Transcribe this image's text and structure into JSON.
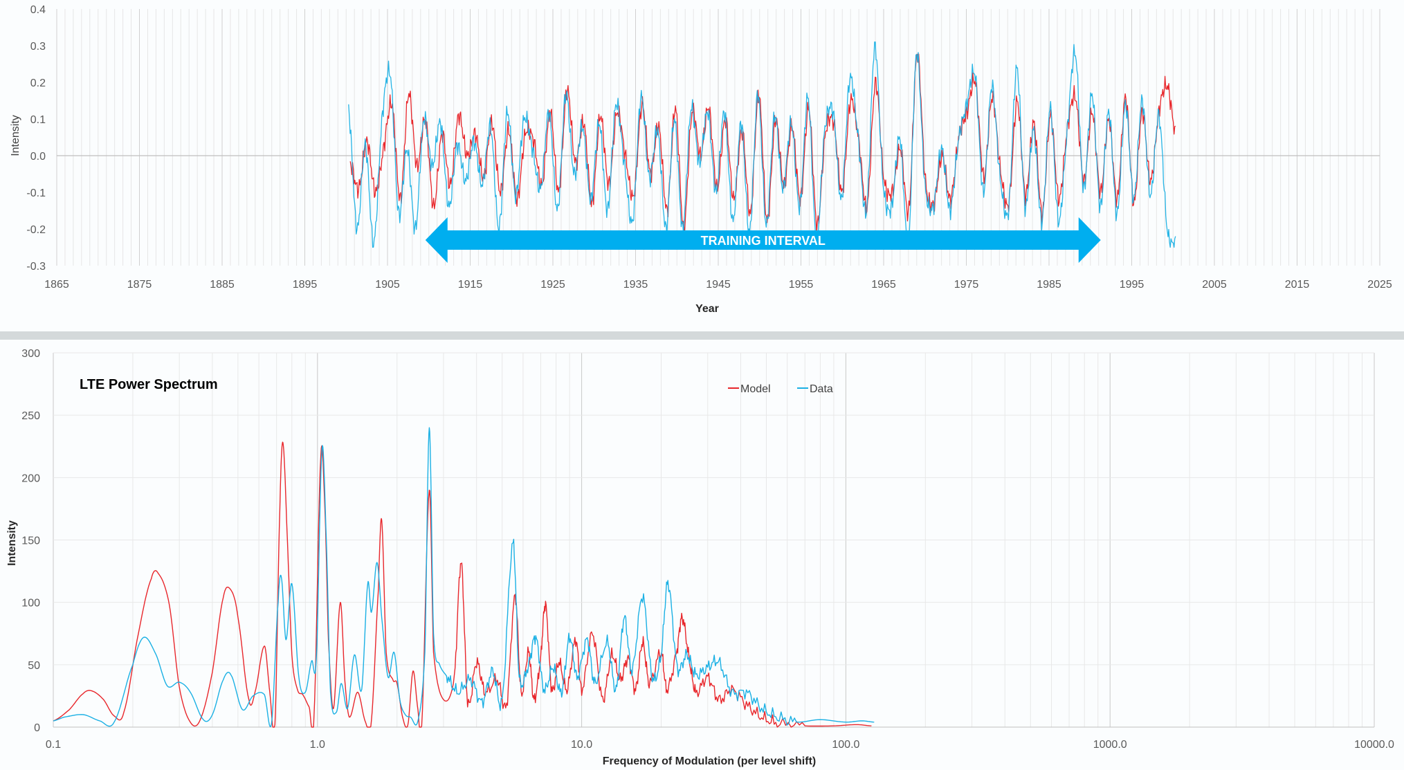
{
  "colors": {
    "model": "#e8262b",
    "data": "#1ab0e4",
    "banner": "#00aeef",
    "grid": "#d9d9d9",
    "zero_line": "#bfbfbf",
    "divider": "#d4d9da"
  },
  "chart_data": [
    {
      "type": "line",
      "title": "",
      "xlabel": "Year",
      "ylabel": "Intensity",
      "xlim": [
        1865,
        2025
      ],
      "ylim": [
        -0.3,
        0.4
      ],
      "x_ticks": [
        "1865",
        "1875",
        "1885",
        "1895",
        "1905",
        "1915",
        "1925",
        "1935",
        "1945",
        "1955",
        "1965",
        "1975",
        "1985",
        "1995",
        "2005",
        "2015",
        "2025"
      ],
      "y_ticks": [
        "0.4",
        "0.3",
        "0.2",
        "0.1",
        "0.0",
        "-0.1",
        "-0.2",
        "-0.3"
      ],
      "grid": "vertical minor gridlines every year",
      "annotation": {
        "text": "TRAINING INTERVAL",
        "from_year": 1910,
        "to_year": 1990
      },
      "series": [
        {
          "color": "#e8262b",
          "x_range": [
            1900.5,
            2000.3
          ],
          "values": [
            -0.02,
            -0.09,
            0.04,
            -0.1,
            0.02,
            0.14,
            -0.12,
            0.17,
            -0.03,
            0.1,
            -0.14,
            0.06,
            -0.08,
            0.11,
            0.0,
            0.06,
            -0.06,
            0.09,
            -0.1,
            0.07,
            -0.12,
            0.06,
            0.04,
            -0.08,
            0.12,
            -0.1,
            0.18,
            -0.02,
            0.09,
            -0.13,
            0.11,
            -0.08,
            0.12,
            0.0,
            -0.11,
            0.14,
            -0.05,
            0.08,
            -0.15,
            0.13,
            -0.2,
            0.12,
            0.0,
            0.13,
            -0.09,
            0.1,
            -0.12,
            0.07,
            -0.16,
            0.17,
            -0.18,
            0.1,
            -0.08,
            0.08,
            -0.12,
            0.13,
            -0.19,
            0.06,
            0.09,
            -0.1,
            0.15,
            0.04,
            -0.14,
            0.2,
            -0.06,
            -0.1,
            0.02,
            -0.15,
            0.28,
            -0.07,
            -0.13,
            0.0,
            -0.12,
            0.05,
            0.12,
            0.2,
            -0.06,
            0.16,
            -0.04,
            -0.13,
            0.15,
            -0.11,
            0.09,
            -0.16,
            0.11,
            -0.12,
            0.07,
            0.16,
            -0.07,
            0.12,
            -0.1,
            0.1,
            -0.12,
            0.16,
            -0.13,
            0.12,
            -0.07,
            0.12,
            0.19,
            0.06
          ]
        },
        {
          "color": "#1ab0e4",
          "x_range": [
            1900.3,
            2000.3
          ],
          "values": [
            0.13,
            -0.2,
            0.03,
            -0.24,
            0.1,
            0.22,
            -0.16,
            0.02,
            -0.2,
            0.1,
            -0.03,
            0.09,
            -0.14,
            0.03,
            -0.07,
            0.04,
            -0.08,
            0.08,
            -0.2,
            0.12,
            -0.11,
            0.1,
            0.02,
            -0.09,
            0.12,
            -0.15,
            0.17,
            -0.05,
            0.08,
            -0.12,
            0.09,
            -0.15,
            0.14,
            -0.02,
            -0.18,
            0.16,
            -0.06,
            0.07,
            -0.2,
            0.1,
            -0.2,
            0.13,
            -0.02,
            0.12,
            -0.1,
            0.12,
            -0.18,
            0.09,
            -0.21,
            0.17,
            -0.19,
            0.11,
            -0.09,
            0.09,
            -0.14,
            0.16,
            -0.23,
            0.07,
            0.12,
            -0.12,
            0.21,
            0.05,
            -0.15,
            0.3,
            -0.08,
            -0.14,
            0.05,
            -0.24,
            0.28,
            -0.08,
            -0.14,
            0.02,
            -0.15,
            0.04,
            0.14,
            0.22,
            -0.1,
            0.19,
            -0.06,
            -0.15,
            0.24,
            -0.14,
            0.07,
            -0.18,
            0.13,
            -0.18,
            0.06,
            0.28,
            -0.09,
            0.17,
            -0.14,
            0.12,
            -0.16,
            0.14,
            -0.12,
            0.15,
            -0.11,
            0.11,
            -0.2,
            -0.24
          ]
        }
      ]
    },
    {
      "type": "line",
      "title": "LTE Power Spectrum",
      "xlabel": "Frequency of Modulation (per level shift)",
      "ylabel": "Intensity",
      "xscale": "log",
      "xlim": [
        0.1,
        10000
      ],
      "ylim": [
        0,
        300
      ],
      "x_ticks": [
        "0.1",
        "1.0",
        "10.0",
        "100.0",
        "1000.0",
        "10000.0"
      ],
      "y_ticks": [
        "300",
        "250",
        "200",
        "150",
        "100",
        "50",
        "0"
      ],
      "legend": {
        "position": "top-center",
        "entries": [
          "Model",
          "Data"
        ]
      },
      "series": [
        {
          "name": "Model",
          "color": "#e8262b",
          "points": [
            [
              0.1,
              5
            ],
            [
              0.115,
              14
            ],
            [
              0.13,
              27
            ],
            [
              0.14,
              29
            ],
            [
              0.155,
              22
            ],
            [
              0.17,
              9
            ],
            [
              0.185,
              12
            ],
            [
              0.21,
              75
            ],
            [
              0.235,
              119
            ],
            [
              0.25,
              123
            ],
            [
              0.275,
              98
            ],
            [
              0.3,
              32
            ],
            [
              0.33,
              4
            ],
            [
              0.36,
              6
            ],
            [
              0.4,
              44
            ],
            [
              0.44,
              104
            ],
            [
              0.47,
              110
            ],
            [
              0.5,
              88
            ],
            [
              0.55,
              22
            ],
            [
              0.58,
              28
            ],
            [
              0.63,
              65
            ],
            [
              0.66,
              28
            ],
            [
              0.69,
              2
            ],
            [
              0.72,
              172
            ],
            [
              0.74,
              228
            ],
            [
              0.77,
              148
            ],
            [
              0.8,
              58
            ],
            [
              0.84,
              30
            ],
            [
              0.88,
              26
            ],
            [
              0.93,
              16
            ],
            [
              0.97,
              8
            ],
            [
              1.03,
              218
            ],
            [
              1.07,
              168
            ],
            [
              1.1,
              70
            ],
            [
              1.15,
              15
            ],
            [
              1.22,
              100
            ],
            [
              1.27,
              37
            ],
            [
              1.32,
              8
            ],
            [
              1.42,
              28
            ],
            [
              1.52,
              4
            ],
            [
              1.6,
              5
            ],
            [
              1.7,
              110
            ],
            [
              1.75,
              166
            ],
            [
              1.82,
              60
            ],
            [
              1.93,
              38
            ],
            [
              2.0,
              35
            ],
            [
              2.1,
              8
            ],
            [
              2.2,
              2
            ],
            [
              2.3,
              45
            ],
            [
              2.4,
              14
            ],
            [
              2.48,
              1
            ],
            [
              2.65,
              190
            ],
            [
              2.75,
              60
            ],
            [
              3.0,
              22
            ],
            [
              3.3,
              40
            ],
            [
              3.5,
              132
            ],
            [
              3.7,
              20
            ],
            [
              4.0,
              52
            ],
            [
              4.3,
              28
            ],
            [
              4.8,
              38
            ],
            [
              5.2,
              18
            ],
            [
              5.6,
              105
            ],
            [
              5.9,
              28
            ],
            [
              6.3,
              60
            ],
            [
              6.6,
              22
            ],
            [
              7.0,
              56
            ],
            [
              7.3,
              98
            ],
            [
              7.7,
              30
            ],
            [
              8.2,
              52
            ],
            [
              8.8,
              30
            ],
            [
              9.5,
              70
            ],
            [
              10.0,
              30
            ],
            [
              11.0,
              75
            ],
            [
              12.0,
              22
            ],
            [
              13.0,
              58
            ],
            [
              14.0,
              38
            ],
            [
              15.0,
              55
            ],
            [
              16.0,
              30
            ],
            [
              17.0,
              68
            ],
            [
              18.0,
              35
            ],
            [
              20.0,
              60
            ],
            [
              21.0,
              30
            ],
            [
              23.0,
              62
            ],
            [
              24.0,
              88
            ],
            [
              25.5,
              55
            ],
            [
              27.0,
              28
            ],
            [
              30.0,
              40
            ],
            [
              33.0,
              22
            ],
            [
              37.0,
              30
            ],
            [
              42.0,
              18
            ],
            [
              48.0,
              8
            ],
            [
              55.0,
              3
            ],
            [
              70.0,
              1
            ],
            [
              90.0,
              1
            ],
            [
              110.0,
              2
            ],
            [
              125.0,
              1
            ]
          ]
        },
        {
          "name": "Data",
          "color": "#1ab0e4",
          "points": [
            [
              0.1,
              5
            ],
            [
              0.11,
              8
            ],
            [
              0.13,
              10
            ],
            [
              0.15,
              5
            ],
            [
              0.17,
              4
            ],
            [
              0.2,
              50
            ],
            [
              0.22,
              72
            ],
            [
              0.245,
              58
            ],
            [
              0.27,
              33
            ],
            [
              0.3,
              36
            ],
            [
              0.33,
              28
            ],
            [
              0.37,
              6
            ],
            [
              0.4,
              10
            ],
            [
              0.44,
              38
            ],
            [
              0.47,
              42
            ],
            [
              0.52,
              14
            ],
            [
              0.57,
              25
            ],
            [
              0.63,
              26
            ],
            [
              0.67,
              3
            ],
            [
              0.71,
              100
            ],
            [
              0.73,
              120
            ],
            [
              0.76,
              70
            ],
            [
              0.8,
              115
            ],
            [
              0.85,
              40
            ],
            [
              0.9,
              28
            ],
            [
              0.95,
              53
            ],
            [
              0.99,
              55
            ],
            [
              1.04,
              223
            ],
            [
              1.08,
              150
            ],
            [
              1.12,
              28
            ],
            [
              1.18,
              12
            ],
            [
              1.23,
              35
            ],
            [
              1.3,
              15
            ],
            [
              1.38,
              58
            ],
            [
              1.47,
              30
            ],
            [
              1.55,
              115
            ],
            [
              1.6,
              92
            ],
            [
              1.68,
              132
            ],
            [
              1.75,
              88
            ],
            [
              1.85,
              40
            ],
            [
              1.95,
              60
            ],
            [
              2.05,
              22
            ],
            [
              2.15,
              10
            ],
            [
              2.25,
              8
            ],
            [
              2.4,
              5
            ],
            [
              2.55,
              60
            ],
            [
              2.65,
              240
            ],
            [
              2.75,
              75
            ],
            [
              2.9,
              50
            ],
            [
              3.1,
              40
            ],
            [
              3.4,
              28
            ],
            [
              3.8,
              38
            ],
            [
              4.2,
              20
            ],
            [
              4.6,
              45
            ],
            [
              5.0,
              22
            ],
            [
              5.5,
              148
            ],
            [
              5.8,
              40
            ],
            [
              6.3,
              50
            ],
            [
              6.7,
              72
            ],
            [
              7.2,
              30
            ],
            [
              7.8,
              48
            ],
            [
              8.4,
              28
            ],
            [
              9.0,
              72
            ],
            [
              9.6,
              40
            ],
            [
              10.5,
              70
            ],
            [
              11.2,
              35
            ],
            [
              12.5,
              68
            ],
            [
              13.5,
              30
            ],
            [
              14.5,
              88
            ],
            [
              15.5,
              45
            ],
            [
              17.0,
              105
            ],
            [
              18.5,
              40
            ],
            [
              20.0,
              58
            ],
            [
              21.2,
              116
            ],
            [
              23.0,
              48
            ],
            [
              25.0,
              58
            ],
            [
              27.0,
              42
            ],
            [
              30.0,
              48
            ],
            [
              33.0,
              52
            ],
            [
              37.0,
              28
            ],
            [
              42.0,
              28
            ],
            [
              48.0,
              15
            ],
            [
              55.0,
              8
            ],
            [
              65.0,
              4
            ],
            [
              80.0,
              6
            ],
            [
              100.0,
              4
            ],
            [
              115.0,
              5
            ],
            [
              128.0,
              4
            ]
          ]
        }
      ]
    }
  ]
}
